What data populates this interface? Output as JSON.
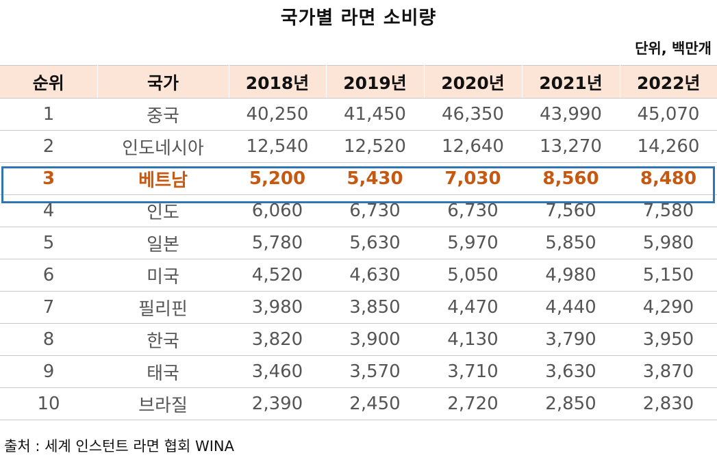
{
  "chart_data": {
    "type": "table",
    "title": "국가별 라면 소비량",
    "unit": "단위, 백만개",
    "columns": [
      "순위",
      "국가",
      "2018년",
      "2019년",
      "2020년",
      "2021년",
      "2022년"
    ],
    "rows": [
      {
        "rank": "1",
        "country": "중국",
        "values": [
          "40,250",
          "41,450",
          "46,350",
          "43,990",
          "45,070"
        ]
      },
      {
        "rank": "2",
        "country": "인도네시아",
        "values": [
          "12,540",
          "12,520",
          "12,640",
          "13,270",
          "14,260"
        ]
      },
      {
        "rank": "3",
        "country": "베트남",
        "values": [
          "5,200",
          "5,430",
          "7,030",
          "8,560",
          "8,480"
        ]
      },
      {
        "rank": "4",
        "country": "인도",
        "values": [
          "6,060",
          "6,730",
          "6,730",
          "7,560",
          "7,580"
        ]
      },
      {
        "rank": "5",
        "country": "일본",
        "values": [
          "5,780",
          "5,630",
          "5,970",
          "5,850",
          "5,980"
        ]
      },
      {
        "rank": "6",
        "country": "미국",
        "values": [
          "4,520",
          "4,630",
          "5,050",
          "4,980",
          "5,150"
        ]
      },
      {
        "rank": "7",
        "country": "필리핀",
        "values": [
          "3,980",
          "3,850",
          "4,470",
          "4,440",
          "4,290"
        ]
      },
      {
        "rank": "8",
        "country": "한국",
        "values": [
          "3,820",
          "3,900",
          "4,130",
          "3,790",
          "3,950"
        ]
      },
      {
        "rank": "9",
        "country": "태국",
        "values": [
          "3,460",
          "3,570",
          "3,710",
          "3,630",
          "3,870"
        ]
      },
      {
        "rank": "10",
        "country": "브라질",
        "values": [
          "2,390",
          "2,450",
          "2,720",
          "2,850",
          "2,830"
        ]
      }
    ],
    "highlighted_rank": "3",
    "source": "출처 : 세계 인스턴트 라면 협회 WINA"
  },
  "colors": {
    "header_background": "#fce4d6",
    "highlight_text": "#c65911",
    "highlight_border": "#2e75b6",
    "body_text": "#555555"
  }
}
